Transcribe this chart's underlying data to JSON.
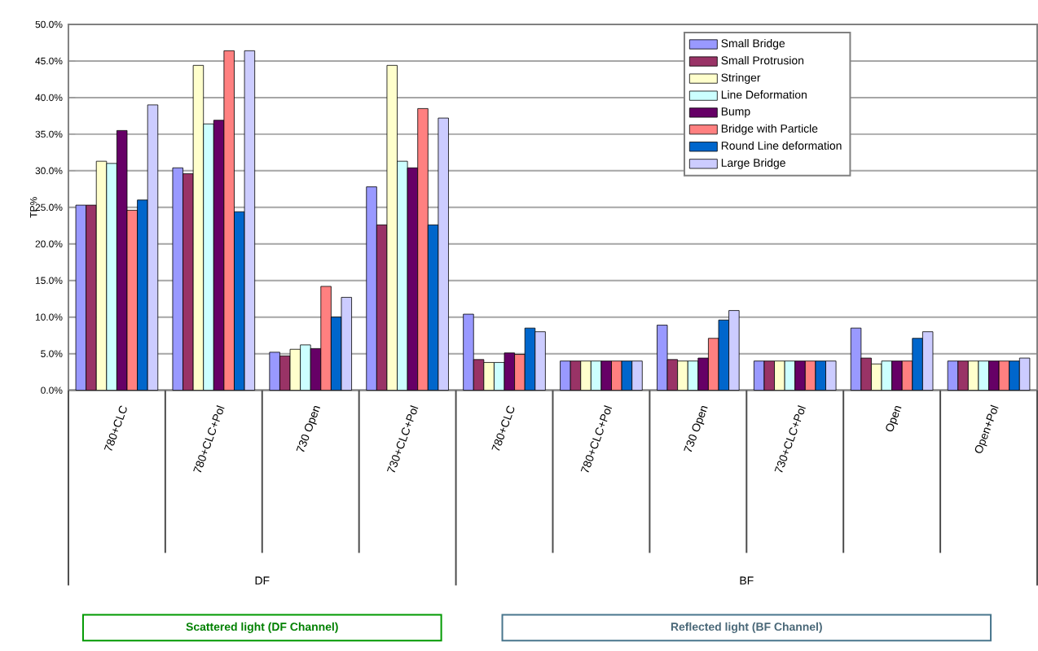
{
  "chart_data": {
    "type": "bar",
    "ylabel": "TP%",
    "categories": [
      "780+CLC",
      "780+CLC+Pol",
      "730 Open",
      "730+CLC+Pol",
      "780+CLC",
      "780+CLC+Pol",
      "730 Open",
      "730+CLC+Pol",
      "Open",
      "Open+Pol"
    ],
    "series": [
      {
        "name": "Small Bridge",
        "color": "#9999ff",
        "values": [
          25.3,
          30.4,
          5.2,
          27.8,
          10.4,
          4,
          8.9,
          4,
          8.5,
          4
        ]
      },
      {
        "name": "Small Protrusion",
        "color": "#993366",
        "values": [
          25.3,
          29.6,
          4.7,
          22.6,
          4.2,
          4,
          4.2,
          4,
          4.4,
          4
        ]
      },
      {
        "name": "Stringer",
        "color": "#ffffcc",
        "values": [
          31.3,
          44.4,
          5.6,
          44.4,
          3.8,
          4,
          4,
          4,
          3.6,
          4
        ]
      },
      {
        "name": "Line Deformation",
        "color": "#ccffff",
        "values": [
          31,
          36.4,
          6.2,
          31.3,
          3.8,
          4,
          4,
          4,
          4,
          4
        ]
      },
      {
        "name": "Bump",
        "color": "#660066",
        "values": [
          35.5,
          36.9,
          5.7,
          30.4,
          5.1,
          4,
          4.4,
          4,
          4,
          4
        ]
      },
      {
        "name": "Bridge with Particle",
        "color": "#ff8080",
        "values": [
          24.6,
          46.4,
          14.2,
          38.5,
          4.9,
          4,
          7.1,
          4,
          4,
          4
        ]
      },
      {
        "name": "Round Line deformation",
        "color": "#0066cc",
        "values": [
          26,
          24.4,
          10,
          22.6,
          8.5,
          4,
          9.6,
          4,
          7.1,
          4
        ]
      },
      {
        "name": "Large Bridge",
        "color": "#ccccff",
        "values": [
          39,
          46.4,
          12.7,
          37.2,
          8,
          4,
          10.9,
          4,
          8,
          4.4
        ]
      }
    ],
    "ylim": [
      0,
      50
    ],
    "yticks": [
      {
        "value": 0,
        "label": "0.0%"
      },
      {
        "value": 5,
        "label": "5.0%"
      },
      {
        "value": 10,
        "label": "10.0%"
      },
      {
        "value": 15,
        "label": "15.0%"
      },
      {
        "value": 20,
        "label": "20.0%"
      },
      {
        "value": 25,
        "label": "25.0%"
      },
      {
        "value": 30,
        "label": "30.0%"
      },
      {
        "value": 35,
        "label": "35.0%"
      },
      {
        "value": 40,
        "label": "40.0%"
      },
      {
        "value": 45,
        "label": "45.0%"
      },
      {
        "value": 50,
        "label": "50.0%"
      }
    ],
    "grid": "y",
    "legend": "top right",
    "annotations": [
      "DF",
      "BF",
      "Scattered light (DF Channel)",
      "Reflected light (BF Channel)"
    ]
  }
}
